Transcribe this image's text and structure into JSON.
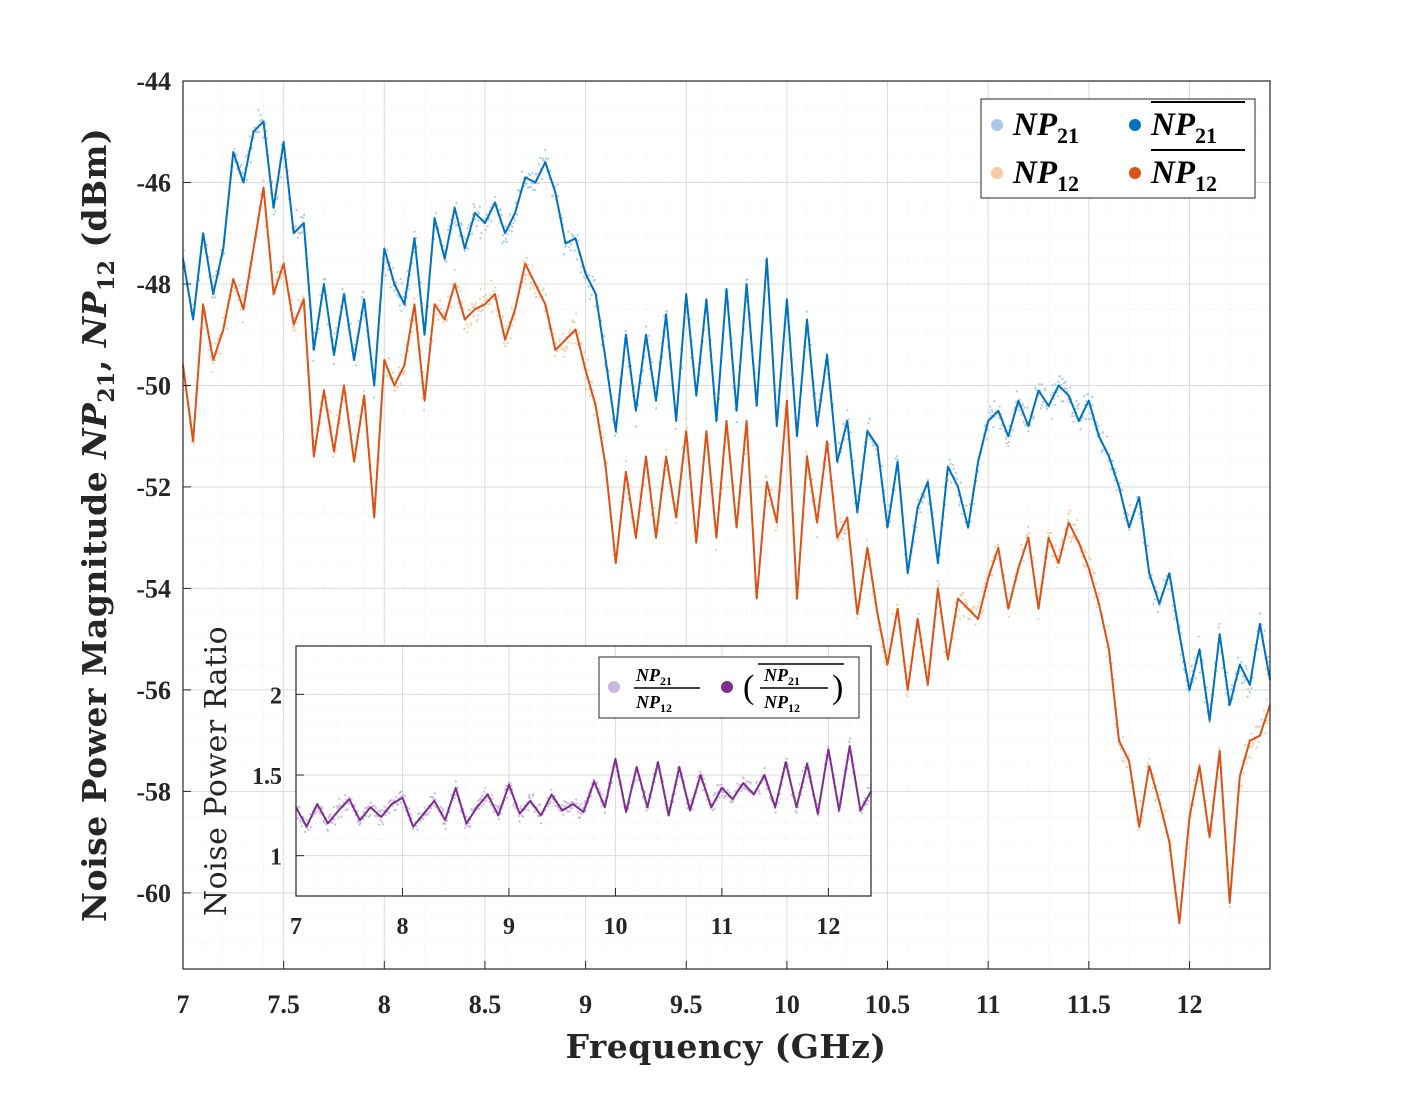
{
  "chart_data": [
    {
      "type": "line",
      "role": "main",
      "xlabel": "Frequency (GHz)",
      "ylabel": {
        "prefix": "Noise Power Magnitude ",
        "var1": "NP",
        "sub1": "21",
        "sep": ", ",
        "var2": "NP",
        "sub2": "12",
        "unit": " (dBm)"
      },
      "xlim": [
        7,
        12.4
      ],
      "ylim": [
        -61.5,
        -44
      ],
      "xticks": [
        7,
        7.5,
        8,
        8.5,
        9,
        9.5,
        10,
        10.5,
        11,
        11.5,
        12
      ],
      "xtick_labels": [
        "7",
        "7.5",
        "8",
        "8.5",
        "9",
        "9.5",
        "10",
        "10.5",
        "11",
        "11.5",
        "12"
      ],
      "yticks": [
        -44,
        -46,
        -48,
        -50,
        -52,
        -54,
        -56,
        -58,
        -60
      ],
      "ytick_labels": [
        "-44",
        "-46",
        "-48",
        "-50",
        "-52",
        "-54",
        "-56",
        "-58",
        "-60"
      ],
      "grid": true,
      "legend_position": "top-right",
      "x": [
        7.0,
        7.05,
        7.1,
        7.15,
        7.2,
        7.25,
        7.3,
        7.35,
        7.4,
        7.45,
        7.5,
        7.55,
        7.6,
        7.65,
        7.7,
        7.75,
        7.8,
        7.85,
        7.9,
        7.95,
        8.0,
        8.05,
        8.1,
        8.15,
        8.2,
        8.25,
        8.3,
        8.35,
        8.4,
        8.45,
        8.5,
        8.55,
        8.6,
        8.65,
        8.7,
        8.75,
        8.8,
        8.85,
        8.9,
        8.95,
        9.0,
        9.05,
        9.1,
        9.15,
        9.2,
        9.25,
        9.3,
        9.35,
        9.4,
        9.45,
        9.5,
        9.55,
        9.6,
        9.65,
        9.7,
        9.75,
        9.8,
        9.85,
        9.9,
        9.95,
        10.0,
        10.05,
        10.1,
        10.15,
        10.2,
        10.25,
        10.3,
        10.35,
        10.4,
        10.45,
        10.5,
        10.55,
        10.6,
        10.65,
        10.7,
        10.75,
        10.8,
        10.85,
        10.9,
        10.95,
        11.0,
        11.05,
        11.1,
        11.15,
        11.2,
        11.25,
        11.3,
        11.35,
        11.4,
        11.45,
        11.5,
        11.55,
        11.6,
        11.65,
        11.7,
        11.75,
        11.8,
        11.85,
        11.9,
        11.95,
        12.0,
        12.05,
        12.1,
        12.15,
        12.2,
        12.25,
        12.3,
        12.35,
        12.4
      ],
      "series": [
        {
          "name": "NP",
          "sub": "21",
          "bar": false,
          "color": "#a9c9e8",
          "kind": "scatter",
          "values": [
            -47.5,
            -48.7,
            -47.0,
            -48.2,
            -47.3,
            -45.4,
            -46.0,
            -45.0,
            -44.8,
            -46.5,
            -45.2,
            -47.0,
            -46.8,
            -49.3,
            -48.0,
            -49.4,
            -48.2,
            -49.5,
            -48.3,
            -50.0,
            -47.3,
            -48.0,
            -48.4,
            -47.1,
            -49.0,
            -46.7,
            -47.5,
            -46.5,
            -47.3,
            -46.6,
            -46.8,
            -46.4,
            -47.0,
            -46.6,
            -45.9,
            -46.0,
            -45.6,
            -46.2,
            -47.2,
            -47.1,
            -47.8,
            -48.2,
            -49.5,
            -50.9,
            -49.0,
            -50.5,
            -49.0,
            -50.3,
            -48.6,
            -50.7,
            -48.2,
            -50.2,
            -48.3,
            -50.7,
            -48.1,
            -50.5,
            -48.0,
            -50.4,
            -47.5,
            -50.8,
            -48.3,
            -51.0,
            -48.7,
            -50.8,
            -49.4,
            -51.5,
            -50.7,
            -52.5,
            -50.9,
            -51.2,
            -52.8,
            -51.5,
            -53.7,
            -52.4,
            -51.9,
            -53.5,
            -51.6,
            -52.0,
            -52.8,
            -51.5,
            -50.7,
            -50.5,
            -51.0,
            -50.3,
            -50.8,
            -50.1,
            -50.4,
            -50.0,
            -50.2,
            -50.7,
            -50.3,
            -51.0,
            -51.4,
            -52.0,
            -52.8,
            -52.2,
            -53.7,
            -54.3,
            -53.7,
            -54.9,
            -56.0,
            -55.2,
            -56.6,
            -54.9,
            -56.3,
            -55.5,
            -55.9,
            -54.7,
            -55.8
          ]
        },
        {
          "name": "NP",
          "sub": "21",
          "bar": true,
          "color": "#0072bd",
          "kind": "line",
          "values": [
            -47.5,
            -48.7,
            -47.0,
            -48.2,
            -47.3,
            -45.4,
            -46.0,
            -45.0,
            -44.8,
            -46.5,
            -45.2,
            -47.0,
            -46.8,
            -49.3,
            -48.0,
            -49.4,
            -48.2,
            -49.5,
            -48.3,
            -50.0,
            -47.3,
            -48.0,
            -48.4,
            -47.1,
            -49.0,
            -46.7,
            -47.5,
            -46.5,
            -47.3,
            -46.6,
            -46.8,
            -46.4,
            -47.0,
            -46.6,
            -45.9,
            -46.0,
            -45.6,
            -46.2,
            -47.2,
            -47.1,
            -47.8,
            -48.2,
            -49.5,
            -50.9,
            -49.0,
            -50.5,
            -49.0,
            -50.3,
            -48.6,
            -50.7,
            -48.2,
            -50.2,
            -48.3,
            -50.7,
            -48.1,
            -50.5,
            -48.0,
            -50.4,
            -47.5,
            -50.8,
            -48.3,
            -51.0,
            -48.7,
            -50.8,
            -49.4,
            -51.5,
            -50.7,
            -52.5,
            -50.9,
            -51.2,
            -52.8,
            -51.5,
            -53.7,
            -52.4,
            -51.9,
            -53.5,
            -51.6,
            -52.0,
            -52.8,
            -51.5,
            -50.7,
            -50.5,
            -51.0,
            -50.3,
            -50.8,
            -50.1,
            -50.4,
            -50.0,
            -50.2,
            -50.7,
            -50.3,
            -51.0,
            -51.4,
            -52.0,
            -52.8,
            -52.2,
            -53.7,
            -54.3,
            -53.7,
            -54.9,
            -56.0,
            -55.2,
            -56.6,
            -54.9,
            -56.3,
            -55.5,
            -55.9,
            -54.7,
            -55.8
          ]
        },
        {
          "name": "NP",
          "sub": "12",
          "bar": false,
          "color": "#f9c9a1",
          "kind": "scatter",
          "values": [
            -49.6,
            -51.1,
            -48.4,
            -49.5,
            -48.9,
            -47.9,
            -48.5,
            -47.3,
            -46.1,
            -48.2,
            -47.6,
            -48.8,
            -48.3,
            -51.4,
            -50.1,
            -51.3,
            -50.0,
            -51.5,
            -50.2,
            -52.6,
            -49.5,
            -50.0,
            -49.6,
            -48.4,
            -50.3,
            -48.4,
            -48.7,
            -48.0,
            -48.7,
            -48.5,
            -48.4,
            -48.2,
            -49.1,
            -48.5,
            -47.6,
            -48.0,
            -48.4,
            -49.3,
            -49.1,
            -48.9,
            -49.7,
            -50.4,
            -51.6,
            -53.5,
            -51.7,
            -53.0,
            -51.4,
            -53.0,
            -51.4,
            -52.6,
            -50.9,
            -53.1,
            -50.9,
            -53.0,
            -50.7,
            -52.8,
            -50.7,
            -54.2,
            -51.9,
            -52.7,
            -50.3,
            -54.2,
            -51.4,
            -52.7,
            -51.1,
            -53.0,
            -52.6,
            -54.5,
            -53.2,
            -54.5,
            -55.5,
            -54.4,
            -56.0,
            -54.6,
            -55.9,
            -54.0,
            -55.4,
            -54.2,
            -54.4,
            -54.6,
            -53.8,
            -53.2,
            -54.4,
            -53.6,
            -53.0,
            -54.4,
            -53.0,
            -53.5,
            -52.7,
            -53.1,
            -53.6,
            -54.3,
            -55.2,
            -57.0,
            -57.4,
            -58.7,
            -57.5,
            -58.2,
            -59.0,
            -60.6,
            -58.5,
            -57.5,
            -58.9,
            -57.2,
            -60.2,
            -57.7,
            -57.0,
            -56.9,
            -56.3
          ]
        },
        {
          "name": "NP",
          "sub": "12",
          "bar": true,
          "color": "#d95319",
          "kind": "line",
          "values": [
            -49.6,
            -51.1,
            -48.4,
            -49.5,
            -48.9,
            -47.9,
            -48.5,
            -47.3,
            -46.1,
            -48.2,
            -47.6,
            -48.8,
            -48.3,
            -51.4,
            -50.1,
            -51.3,
            -50.0,
            -51.5,
            -50.2,
            -52.6,
            -49.5,
            -50.0,
            -49.6,
            -48.4,
            -50.3,
            -48.4,
            -48.7,
            -48.0,
            -48.7,
            -48.5,
            -48.4,
            -48.2,
            -49.1,
            -48.5,
            -47.6,
            -48.0,
            -48.4,
            -49.3,
            -49.1,
            -48.9,
            -49.7,
            -50.4,
            -51.6,
            -53.5,
            -51.7,
            -53.0,
            -51.4,
            -53.0,
            -51.4,
            -52.6,
            -50.9,
            -53.1,
            -50.9,
            -53.0,
            -50.7,
            -52.8,
            -50.7,
            -54.2,
            -51.9,
            -52.7,
            -50.3,
            -54.2,
            -51.4,
            -52.7,
            -51.1,
            -53.0,
            -52.6,
            -54.5,
            -53.2,
            -54.5,
            -55.5,
            -54.4,
            -56.0,
            -54.6,
            -55.9,
            -54.0,
            -55.4,
            -54.2,
            -54.4,
            -54.6,
            -53.8,
            -53.2,
            -54.4,
            -53.6,
            -53.0,
            -54.4,
            -53.0,
            -53.5,
            -52.7,
            -53.1,
            -53.6,
            -54.3,
            -55.2,
            -57.0,
            -57.4,
            -58.7,
            -57.5,
            -58.2,
            -59.0,
            -60.6,
            -58.5,
            -57.5,
            -58.9,
            -57.2,
            -60.2,
            -57.7,
            -57.0,
            -56.9,
            -56.3
          ]
        }
      ]
    },
    {
      "type": "line",
      "role": "inset",
      "xlabel": "",
      "ylabel": "Noise Power Ratio",
      "xlim": [
        7,
        12.4
      ],
      "ylim": [
        0.75,
        2.3
      ],
      "xticks": [
        7,
        8,
        9,
        10,
        11,
        12
      ],
      "xtick_labels": [
        "7",
        "8",
        "9",
        "10",
        "11",
        "12"
      ],
      "yticks": [
        1,
        1.5,
        2
      ],
      "ytick_labels": [
        "1",
        "1.5",
        "2"
      ],
      "grid": true,
      "legend_position": "top-right",
      "x": [
        7.0,
        7.1,
        7.2,
        7.3,
        7.4,
        7.5,
        7.6,
        7.7,
        7.8,
        7.9,
        8.0,
        8.1,
        8.2,
        8.3,
        8.4,
        8.5,
        8.6,
        8.7,
        8.8,
        8.9,
        9.0,
        9.1,
        9.2,
        9.3,
        9.4,
        9.5,
        9.6,
        9.7,
        9.8,
        9.9,
        10.0,
        10.1,
        10.2,
        10.3,
        10.4,
        10.5,
        10.6,
        10.7,
        10.8,
        10.9,
        11.0,
        11.1,
        11.2,
        11.3,
        11.4,
        11.5,
        11.6,
        11.7,
        11.8,
        11.9,
        12.0,
        12.1,
        12.2,
        12.3,
        12.4
      ],
      "series": [
        {
          "name": "ratio",
          "color": "#c9b8e0",
          "kind": "scatter",
          "values": [
            1.3,
            1.18,
            1.32,
            1.2,
            1.28,
            1.35,
            1.22,
            1.3,
            1.24,
            1.32,
            1.36,
            1.18,
            1.26,
            1.34,
            1.22,
            1.42,
            1.2,
            1.3,
            1.38,
            1.25,
            1.44,
            1.26,
            1.34,
            1.25,
            1.38,
            1.28,
            1.32,
            1.27,
            1.46,
            1.3,
            1.6,
            1.27,
            1.55,
            1.3,
            1.58,
            1.25,
            1.55,
            1.28,
            1.5,
            1.3,
            1.42,
            1.35,
            1.45,
            1.38,
            1.5,
            1.3,
            1.58,
            1.3,
            1.57,
            1.26,
            1.66,
            1.28,
            1.68,
            1.28,
            1.4
          ]
        },
        {
          "name": "ratio_mean",
          "color": "#7e2f8e",
          "kind": "line",
          "values": [
            1.3,
            1.18,
            1.32,
            1.2,
            1.28,
            1.35,
            1.22,
            1.3,
            1.24,
            1.32,
            1.36,
            1.18,
            1.26,
            1.34,
            1.22,
            1.42,
            1.2,
            1.3,
            1.38,
            1.25,
            1.44,
            1.26,
            1.34,
            1.25,
            1.38,
            1.28,
            1.32,
            1.27,
            1.46,
            1.3,
            1.6,
            1.27,
            1.55,
            1.3,
            1.58,
            1.25,
            1.55,
            1.28,
            1.5,
            1.3,
            1.42,
            1.35,
            1.45,
            1.38,
            1.5,
            1.3,
            1.58,
            1.3,
            1.57,
            1.26,
            1.66,
            1.28,
            1.68,
            1.28,
            1.4
          ]
        }
      ],
      "legend": {
        "frac_num_var": "NP",
        "frac_num_sub": "21",
        "frac_den_var": "NP",
        "frac_den_sub": "12",
        "open_paren": "(",
        "close_paren": ")"
      }
    }
  ]
}
